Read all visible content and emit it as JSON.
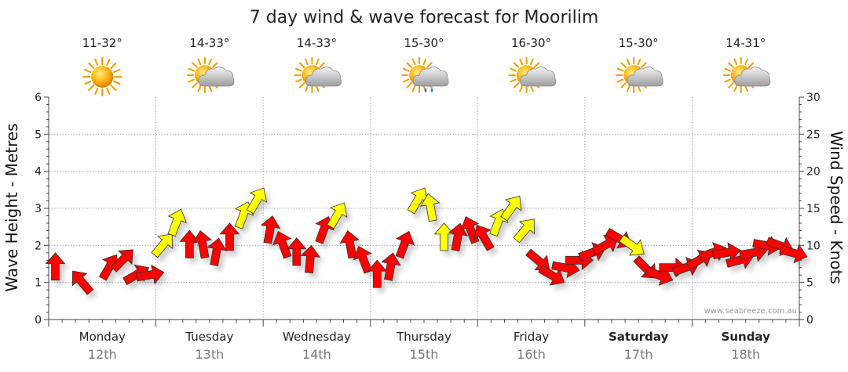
{
  "chart_data": {
    "type": "line",
    "title": "7 day wind & wave forecast for Moorilim",
    "ylabel_left": "Wave Height - Metres",
    "ylabel_right": "Wind Speed - Knots",
    "ylim_left": [
      0,
      6
    ],
    "ylim_right": [
      0,
      30
    ],
    "yticks_left": [
      "0",
      "1",
      "2",
      "3",
      "4",
      "5",
      "6"
    ],
    "yticks_right": [
      "0",
      "5",
      "10",
      "15",
      "20",
      "25",
      "30"
    ],
    "credit": "www.seabreeze.com.au",
    "days": [
      {
        "name": "Monday",
        "date": "12th",
        "temp": "11-32°",
        "weather": "sunny",
        "bold": false
      },
      {
        "name": "Tuesday",
        "date": "13th",
        "temp": "14-33°",
        "weather": "partly-cloudy",
        "bold": false
      },
      {
        "name": "Wednesday",
        "date": "14th",
        "temp": "14-33°",
        "weather": "partly-cloudy",
        "bold": false
      },
      {
        "name": "Thursday",
        "date": "15th",
        "temp": "15-30°",
        "weather": "shower",
        "bold": false
      },
      {
        "name": "Friday",
        "date": "16th",
        "temp": "16-30°",
        "weather": "partly-cloudy",
        "bold": false
      },
      {
        "name": "Saturday",
        "date": "17th",
        "temp": "15-30°",
        "weather": "partly-cloudy",
        "bold": true
      },
      {
        "name": "Sunday",
        "date": "18th",
        "temp": "14-31°",
        "weather": "partly-cloudy",
        "bold": true
      }
    ],
    "wind_series": {
      "name": "Wind speed (knots) and direction (degrees wind blows toward, 0 = up, clockwise)",
      "x_hours": [
        0,
        6,
        12,
        15,
        18,
        21,
        24,
        27,
        30,
        33,
        36,
        39,
        42,
        45,
        48,
        51,
        54,
        57,
        60,
        63,
        66,
        69,
        72,
        75,
        78,
        81,
        84,
        87,
        90,
        93,
        96,
        99,
        102,
        105,
        108,
        111,
        114,
        117,
        120,
        123,
        126,
        129,
        132,
        135,
        138,
        141,
        144,
        147,
        150,
        153,
        156,
        159,
        162,
        165
      ],
      "knots": [
        7,
        5,
        7,
        8,
        6,
        6,
        10,
        13,
        10,
        10,
        9,
        11,
        14,
        16,
        12,
        10,
        9,
        8,
        12,
        14,
        10,
        8,
        6,
        7,
        10,
        16,
        15,
        11,
        11,
        12,
        11,
        13,
        15,
        12,
        8,
        6,
        7,
        8,
        9,
        10,
        11,
        10,
        7,
        6,
        7,
        7,
        8,
        9,
        9,
        8,
        9,
        10,
        10,
        9
      ],
      "dir_deg": [
        0,
        -40,
        30,
        45,
        60,
        80,
        40,
        20,
        0,
        -10,
        10,
        0,
        20,
        30,
        10,
        -20,
        0,
        5,
        20,
        30,
        -10,
        -20,
        0,
        10,
        20,
        30,
        -10,
        0,
        10,
        -20,
        -30,
        20,
        35,
        40,
        130,
        120,
        100,
        90,
        70,
        60,
        120,
        125,
        135,
        110,
        90,
        70,
        60,
        70,
        80,
        75,
        80,
        100,
        110,
        105
      ],
      "colors": [
        "#ff0000",
        "#ff0000",
        "#ff0000",
        "#ff0000",
        "#ff0000",
        "#ff0000",
        "#ffff00",
        "#ffff00",
        "#ff0000",
        "#ff0000",
        "#ff0000",
        "#ff0000",
        "#ffff00",
        "#ffff00",
        "#ff0000",
        "#ff0000",
        "#ff0000",
        "#ff0000",
        "#ff0000",
        "#ffff00",
        "#ff0000",
        "#ff0000",
        "#ff0000",
        "#ff0000",
        "#ff0000",
        "#ffff00",
        "#ffff00",
        "#ffff00",
        "#ff0000",
        "#ff0000",
        "#ff0000",
        "#ffff00",
        "#ffff00",
        "#ffff00",
        "#ff0000",
        "#ff0000",
        "#ff0000",
        "#ff0000",
        "#ff0000",
        "#ff0000",
        "#ff0000",
        "#ffff00",
        "#ff0000",
        "#ff0000",
        "#ff0000",
        "#ff0000",
        "#ff0000",
        "#ff0000",
        "#ff0000",
        "#ff0000",
        "#ff0000",
        "#ff0000",
        "#ff0000",
        "#ff0000"
      ]
    },
    "grid": true
  },
  "colors": {
    "wind_light": "#ff0000",
    "wind_strong": "#ffff00",
    "sun": "#f7a600",
    "cloud": "#cfcfcf",
    "rain": "#3a7bd5"
  }
}
